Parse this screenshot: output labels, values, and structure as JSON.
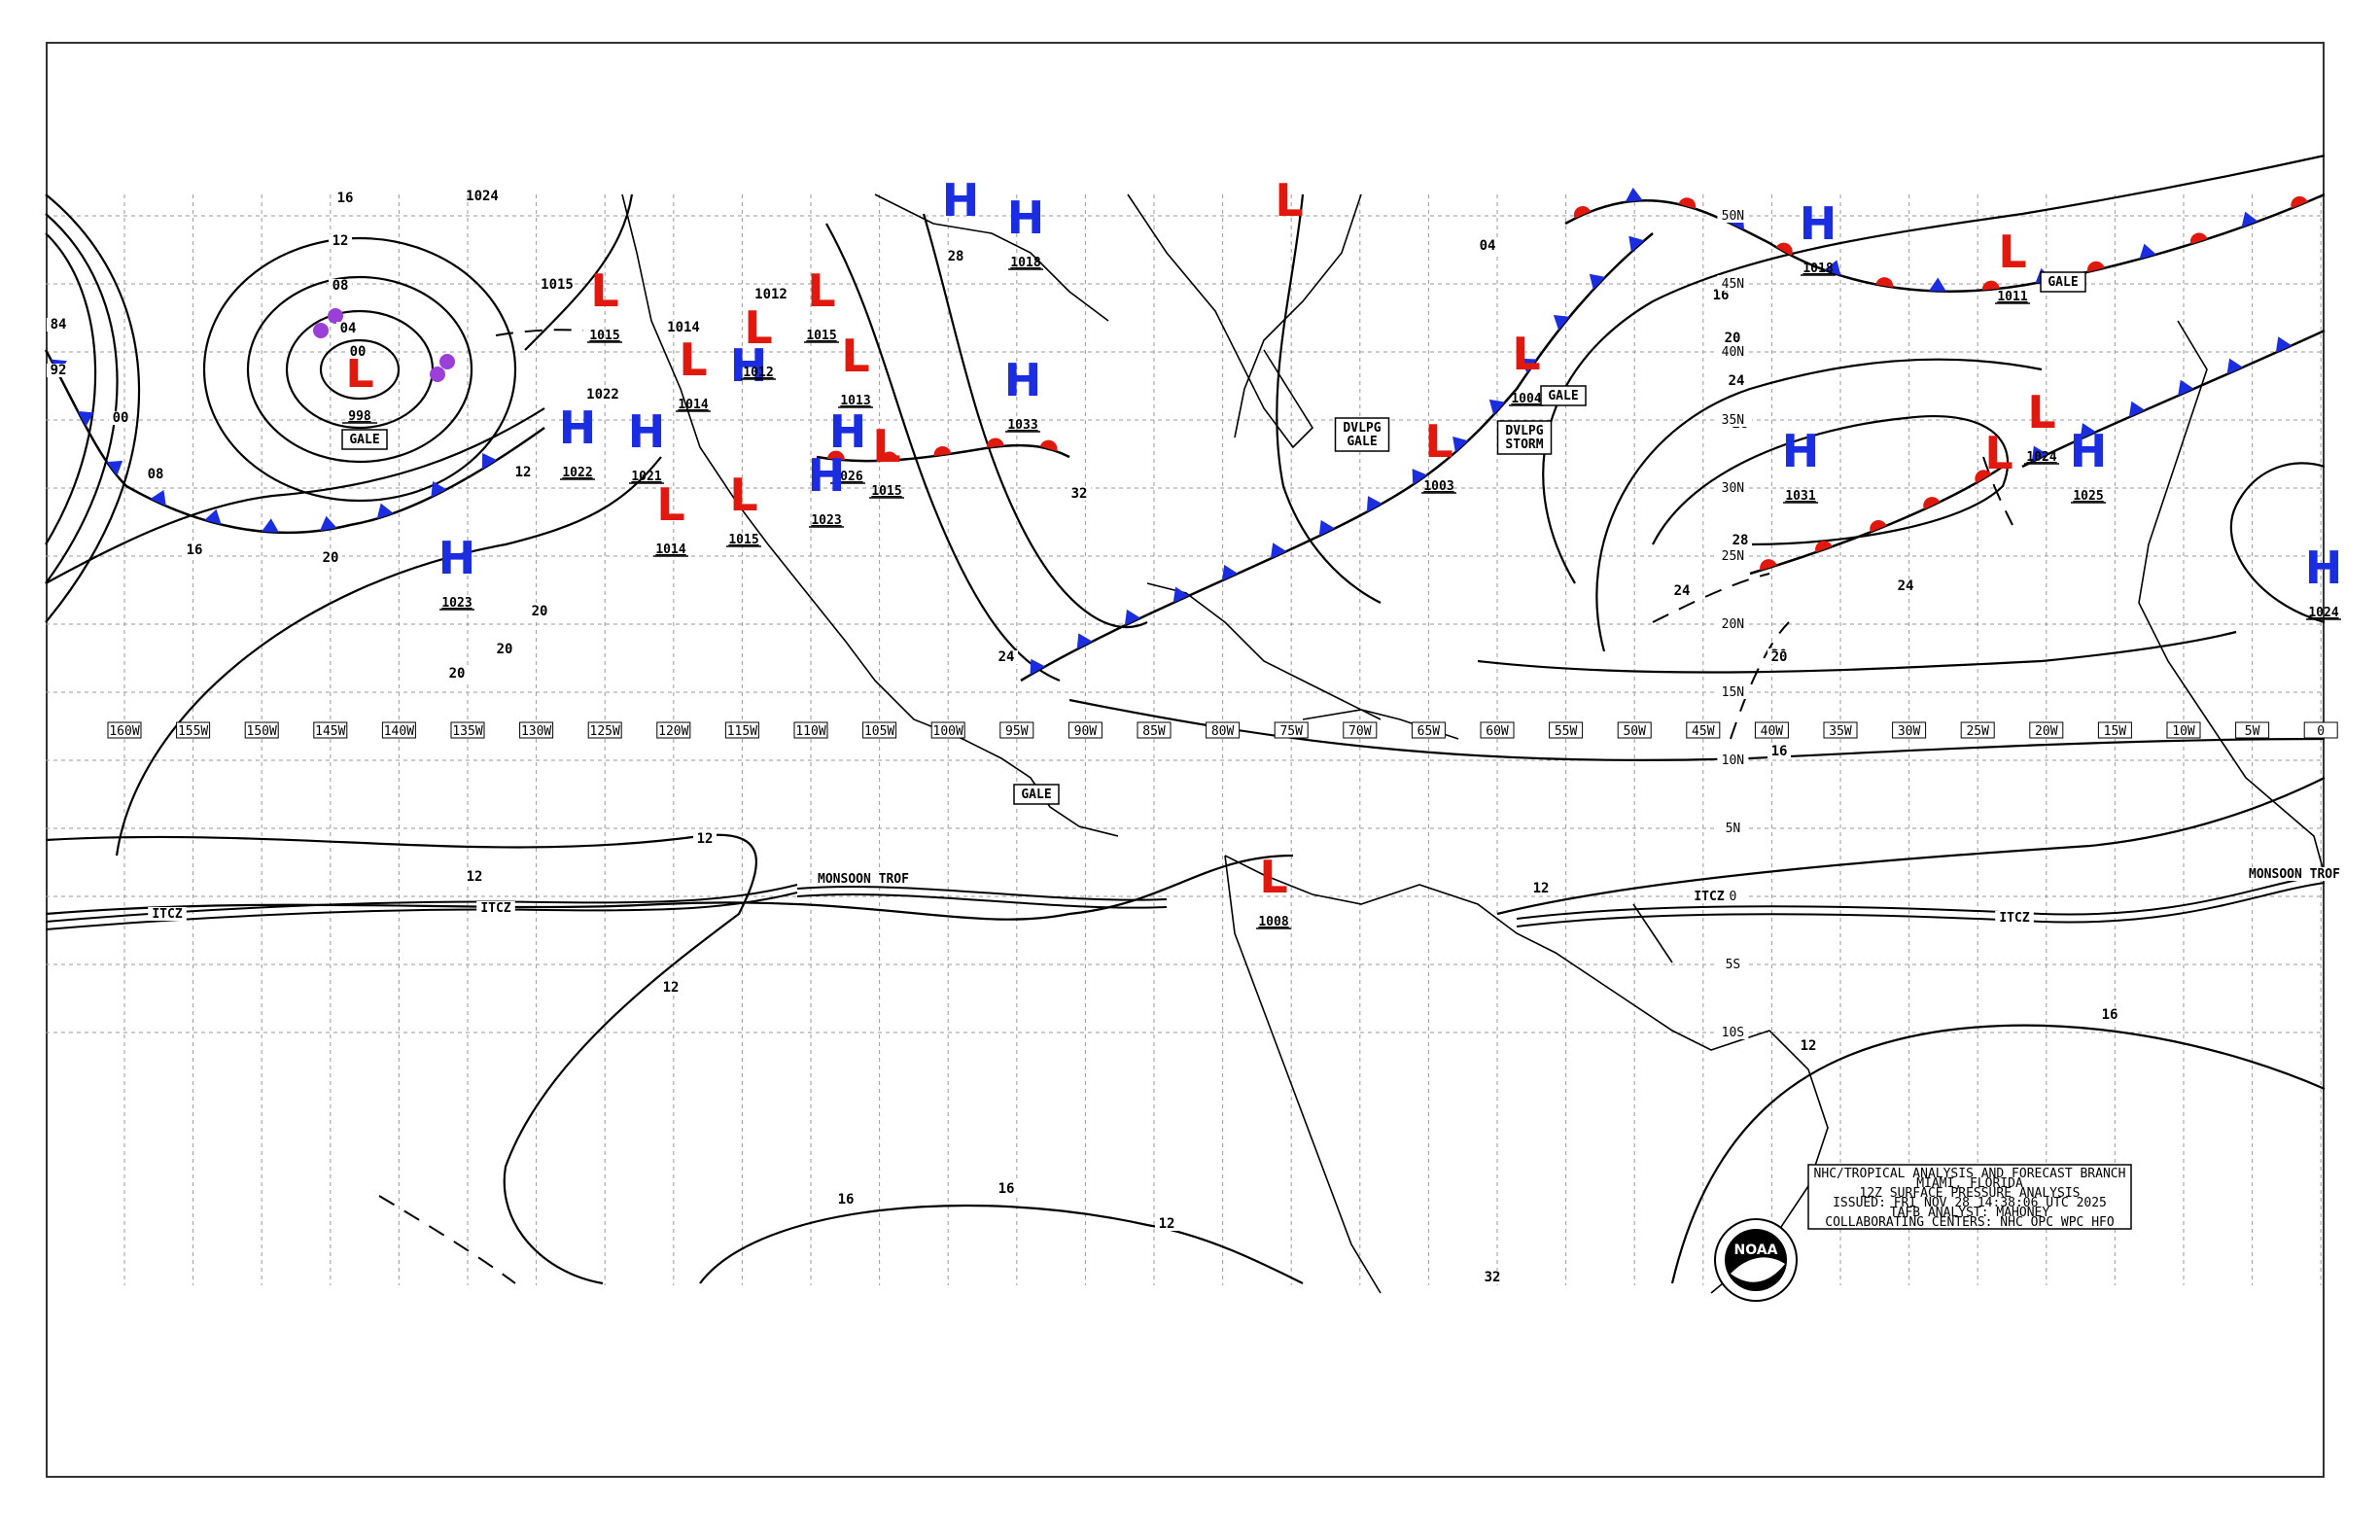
{
  "colors": {
    "high": "#1b2de0",
    "low": "#e0180e",
    "cold_front": "#1b2de0",
    "warm_front": "#e0180e",
    "occluded": "#9b3fd9"
  },
  "longitudes": [
    "160W",
    "155W",
    "150W",
    "145W",
    "140W",
    "135W",
    "130W",
    "125W",
    "120W",
    "115W",
    "110W",
    "105W",
    "100W",
    "95W",
    "90W",
    "85W",
    "80W",
    "75W",
    "70W",
    "65W",
    "60W",
    "55W",
    "50W",
    "45W",
    "40W",
    "35W",
    "30W",
    "25W",
    "20W",
    "15W",
    "10W",
    "5W",
    "0"
  ],
  "latitudes": [
    "50N",
    "45N",
    "40N",
    "35N",
    "30N",
    "25N",
    "20N",
    "15N",
    "10N",
    "5N",
    "0",
    "5S",
    "10S"
  ],
  "highs": [
    {
      "label": "H",
      "pressure": "1023"
    },
    {
      "label": "H",
      "pressure": "1022"
    },
    {
      "label": "H",
      "pressure": "1021"
    },
    {
      "label": "H",
      "pressure": "1018"
    },
    {
      "label": "H",
      "pressure": "1033"
    },
    {
      "label": "H",
      "pressure": "1026"
    },
    {
      "label": "H",
      "pressure": "1023"
    },
    {
      "label": "H",
      "pressure": "1031"
    },
    {
      "label": "H",
      "pressure": "1025"
    },
    {
      "label": "H",
      "pressure": "1018"
    },
    {
      "label": "H",
      "pressure": "1024"
    },
    {
      "label": "H",
      "pressure": ""
    },
    {
      "label": "H",
      "pressure": ""
    }
  ],
  "lows": [
    {
      "label": "L",
      "pressure": "998"
    },
    {
      "label": "L",
      "pressure": "1015"
    },
    {
      "label": "L",
      "pressure": "1014"
    },
    {
      "label": "L",
      "pressure": "1012"
    },
    {
      "label": "L",
      "pressure": "1015"
    },
    {
      "label": "L",
      "pressure": "1013"
    },
    {
      "label": "L",
      "pressure": "1014"
    },
    {
      "label": "L",
      "pressure": "1015"
    },
    {
      "label": "L",
      "pressure": "1015"
    },
    {
      "label": "L",
      "pressure": "1004"
    },
    {
      "label": "L",
      "pressure": "1003"
    },
    {
      "label": "L",
      "pressure": "1011"
    },
    {
      "label": "L",
      "pressure": "1024"
    },
    {
      "label": "L",
      "pressure": "1008"
    },
    {
      "label": "L",
      "pressure": ""
    },
    {
      "label": "L",
      "pressure": ""
    }
  ],
  "isobar_labels": [
    "16",
    "12",
    "08",
    "04",
    "00",
    "92",
    "84",
    "00",
    "08",
    "16",
    "20",
    "20",
    "20",
    "12",
    "20",
    "04",
    "16",
    "20",
    "24",
    "28",
    "24",
    "20",
    "28",
    "28",
    "24",
    "20",
    "16",
    "12",
    "12",
    "12",
    "12",
    "16",
    "16",
    "16",
    "12",
    "12",
    "32",
    "28",
    "24",
    "32",
    "1024",
    "1015",
    "1014",
    "1012",
    "1022"
  ],
  "boxes": [
    "GALE",
    "GALE",
    "GALE",
    "DVLPG GALE",
    "DVLPG STORM",
    "GALE"
  ],
  "features": [
    "ITCZ",
    "ITCZ",
    "MONSOON TROF",
    "ITCZ",
    "ITCZ",
    "MONSOON TROF"
  ],
  "title_block": {
    "line1": "NHC/TROPICAL ANALYSIS AND FORECAST BRANCH",
    "line2": "MIAMI, FLORIDA",
    "line3": "12Z SURFACE PRESSURE ANALYSIS",
    "line4": "ISSUED: FRI NOV 28 14:38:06 UTC 2025",
    "line5": "TAFB ANALYST: MAHONEY",
    "line6": "COLLABORATING CENTERS: NHC OPC WPC HFO"
  },
  "logo_text": "NOAA"
}
